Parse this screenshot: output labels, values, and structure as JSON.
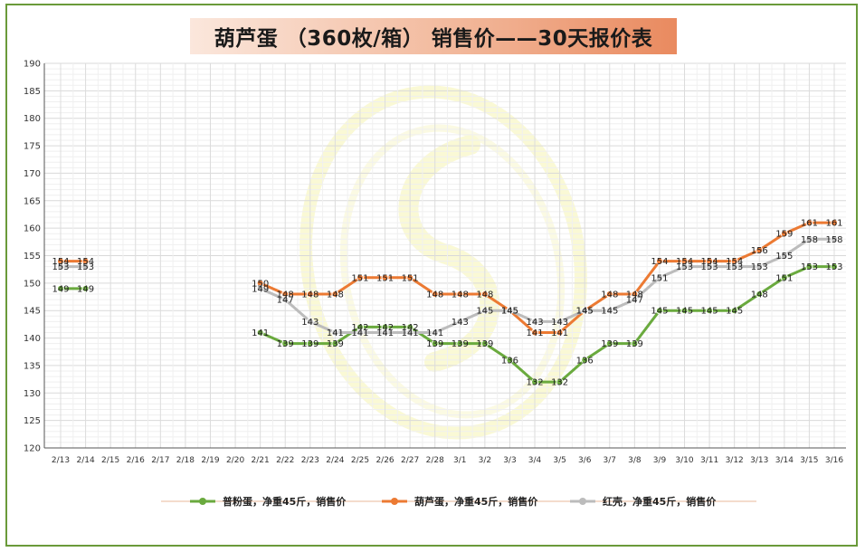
{
  "title": "葫芦蛋 （360枚/箱） 销售价——30天报价表",
  "colors": {
    "green": "#6aaa3e",
    "orange": "#ec7a33",
    "gray": "#bcbcbc",
    "grid": "#e6e6e6",
    "frame": "#6a9a3a"
  },
  "chart_data": {
    "type": "line",
    "title": "葫芦蛋 （360枚/箱） 销售价——30天报价表",
    "ylim": [
      120,
      190
    ],
    "yticks": [
      120,
      125,
      130,
      135,
      140,
      145,
      150,
      155,
      160,
      165,
      170,
      175,
      180,
      185,
      190
    ],
    "grid": true,
    "legend_position": "bottom",
    "categories": [
      "2/13",
      "2/14",
      "2/15",
      "2/16",
      "2/17",
      "2/18",
      "2/19",
      "2/20",
      "2/21",
      "2/22",
      "2/23",
      "2/24",
      "2/25",
      "2/26",
      "2/27",
      "2/28",
      "3/1",
      "3/2",
      "3/3",
      "3/4",
      "3/5",
      "3/6",
      "3/7",
      "3/8",
      "3/9",
      "3/10",
      "3/11",
      "3/12",
      "3/13",
      "3/14",
      "3/15",
      "3/16"
    ],
    "series": [
      {
        "name": "普粉蛋，净重45斤，销售价",
        "color": "#6aaa3e",
        "values": [
          149,
          149,
          null,
          null,
          null,
          null,
          null,
          null,
          141,
          139,
          139,
          139,
          142,
          142,
          142,
          139,
          139,
          139,
          136,
          132,
          132,
          136,
          139,
          139,
          145,
          145,
          145,
          145,
          148,
          151,
          153,
          153
        ]
      },
      {
        "name": "葫芦蛋，净重45斤，销售价",
        "color": "#ec7a33",
        "values": [
          154,
          154,
          null,
          null,
          null,
          null,
          null,
          null,
          150,
          148,
          148,
          148,
          151,
          151,
          151,
          148,
          148,
          148,
          145,
          141,
          141,
          145,
          148,
          148,
          154,
          154,
          154,
          154,
          156,
          159,
          161,
          161
        ]
      },
      {
        "name": "红壳，净重45斤，销售价",
        "color": "#bcbcbc",
        "values": [
          153,
          153,
          null,
          null,
          null,
          null,
          null,
          null,
          149,
          147,
          143,
          141,
          141,
          141,
          141,
          141,
          143,
          145,
          145,
          143,
          143,
          145,
          145,
          147,
          151,
          153,
          153,
          153,
          153,
          155,
          158,
          158
        ]
      }
    ]
  }
}
